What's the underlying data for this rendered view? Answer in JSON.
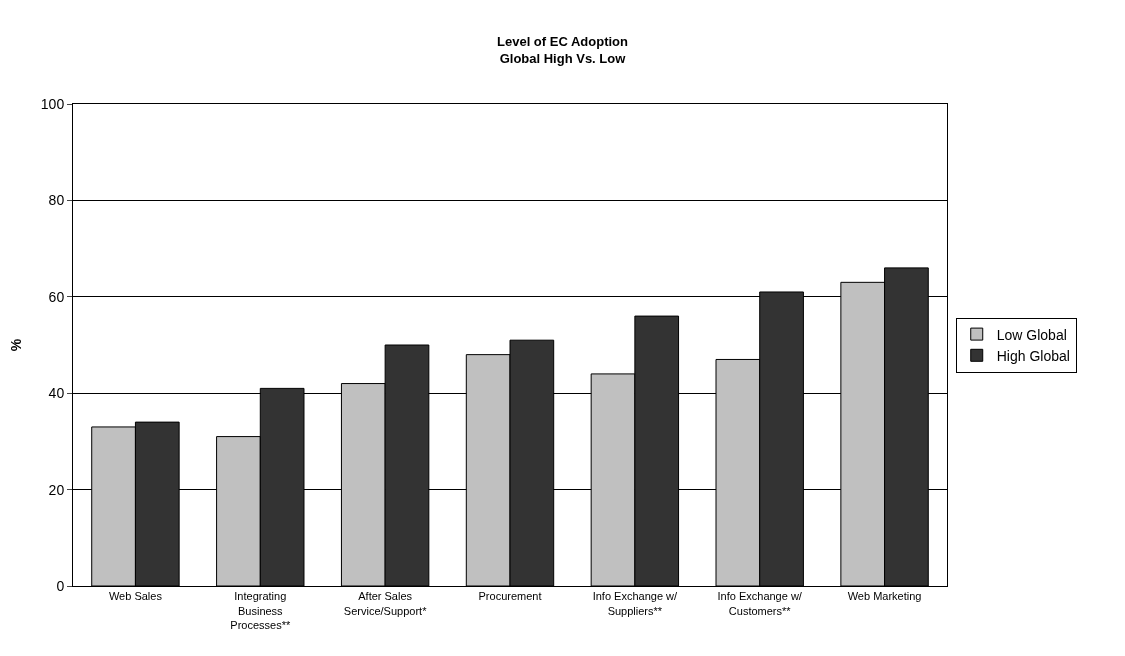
{
  "chart_data": {
    "type": "bar",
    "title": "Level of EC Adoption",
    "subtitle": "Global High Vs. Low",
    "ylabel": "%",
    "categories": [
      "Web Sales",
      "Integrating Business Processes**",
      "After Sales Service/Support*",
      "Procurement",
      "Info Exchange w/ Suppliers**",
      "Info Exchange w/ Customers**",
      "Web Marketing"
    ],
    "series": [
      {
        "name": "Low Global",
        "color": "#c0c0c0",
        "values": [
          33,
          31,
          42,
          48,
          44,
          47,
          63
        ]
      },
      {
        "name": "High Global",
        "color": "#333333",
        "values": [
          34,
          41,
          50,
          51,
          56,
          61,
          66
        ]
      }
    ],
    "ylim": [
      0,
      100
    ],
    "yticks": [
      0,
      20,
      40,
      60,
      80,
      100
    ],
    "grid": "y",
    "legend": "right"
  }
}
